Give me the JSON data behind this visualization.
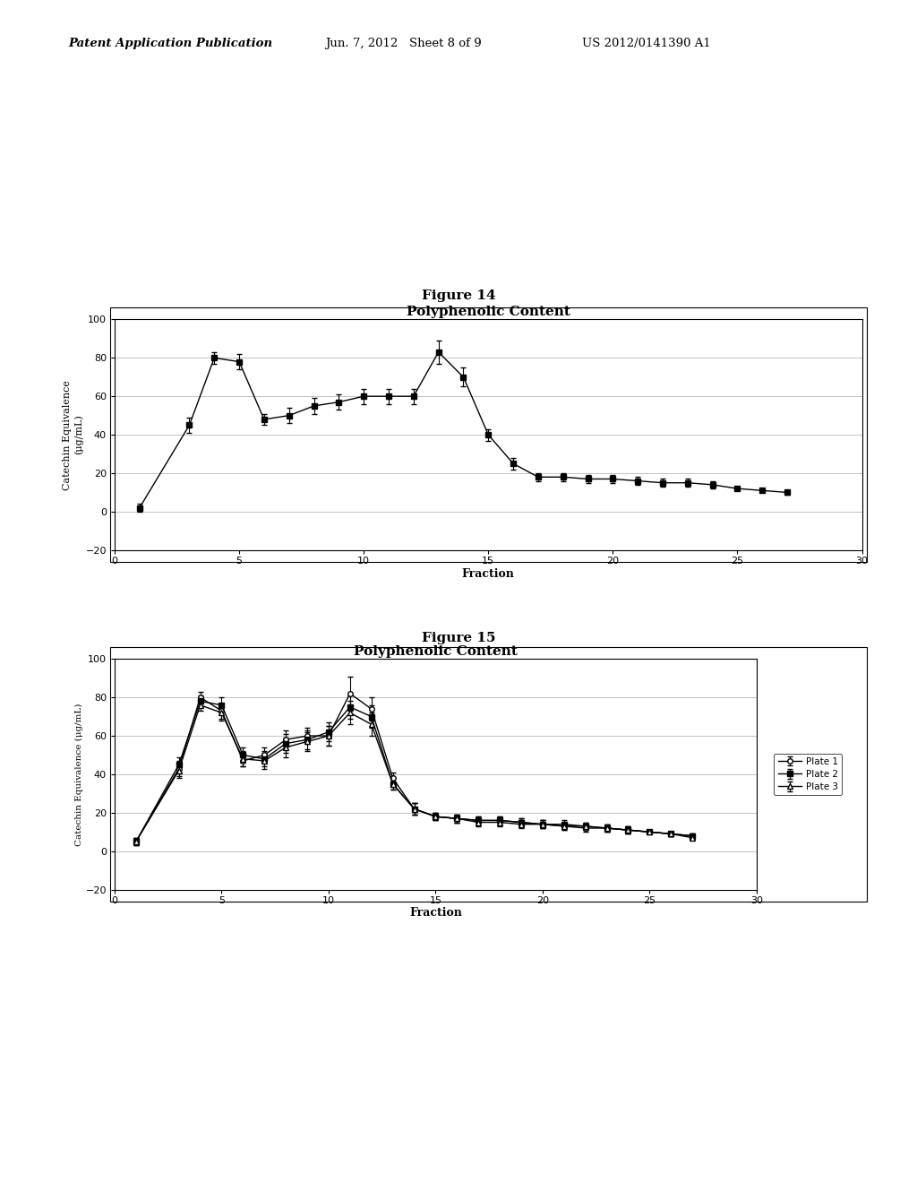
{
  "fig14_title": "Polyphenolic Content",
  "fig15_title": "Polyphenolic Content",
  "xlabel": "Fraction",
  "ylabel14": "Catechin Equivalence\n(μg/mL)",
  "ylabel15": "Catechin Equivalence (μg/mL)",
  "xlim": [
    0,
    30
  ],
  "ylim": [
    -20,
    100
  ],
  "xticks": [
    0,
    5,
    10,
    15,
    20,
    25,
    30
  ],
  "yticks": [
    -20,
    0,
    20,
    40,
    60,
    80,
    100
  ],
  "fig14_x": [
    1,
    3,
    4,
    5,
    6,
    7,
    8,
    9,
    10,
    11,
    12,
    13,
    14,
    15,
    16,
    17,
    18,
    19,
    20,
    21,
    22,
    23,
    24,
    25,
    26,
    27
  ],
  "fig14_y": [
    2,
    45,
    80,
    78,
    48,
    50,
    55,
    57,
    60,
    60,
    60,
    83,
    70,
    40,
    25,
    18,
    18,
    17,
    17,
    16,
    15,
    15,
    14,
    12,
    11,
    10
  ],
  "fig14_yerr": [
    2,
    4,
    3,
    4,
    3,
    4,
    4,
    4,
    4,
    4,
    4,
    6,
    5,
    3,
    3,
    2,
    2,
    2,
    2,
    2,
    2,
    2,
    2,
    1,
    1,
    1
  ],
  "fig15_plate1_x": [
    1,
    3,
    4,
    5,
    6,
    7,
    8,
    9,
    10,
    11,
    12,
    13,
    14,
    15,
    16,
    17,
    18,
    19,
    20,
    21,
    22,
    23,
    24,
    25,
    26,
    27
  ],
  "fig15_plate1_y": [
    5,
    43,
    80,
    73,
    47,
    50,
    58,
    60,
    60,
    82,
    74,
    38,
    22,
    18,
    17,
    16,
    16,
    15,
    14,
    13,
    12,
    12,
    11,
    10,
    9,
    8
  ],
  "fig15_plate1_yerr": [
    2,
    4,
    3,
    4,
    3,
    4,
    5,
    4,
    5,
    9,
    6,
    3,
    3,
    2,
    2,
    2,
    2,
    2,
    2,
    2,
    2,
    2,
    2,
    1,
    1,
    1
  ],
  "fig15_plate2_x": [
    1,
    3,
    4,
    5,
    6,
    7,
    8,
    9,
    10,
    11,
    12,
    13,
    14,
    15,
    16,
    17,
    18,
    19,
    20,
    21,
    22,
    23,
    24,
    25,
    26,
    27
  ],
  "fig15_plate2_y": [
    5,
    45,
    78,
    76,
    50,
    48,
    56,
    58,
    62,
    75,
    70,
    35,
    22,
    18,
    17,
    16,
    16,
    15,
    14,
    14,
    13,
    12,
    11,
    10,
    9,
    8
  ],
  "fig15_plate2_yerr": [
    2,
    4,
    3,
    4,
    4,
    4,
    5,
    5,
    5,
    6,
    6,
    3,
    3,
    2,
    2,
    2,
    2,
    2,
    2,
    2,
    2,
    2,
    2,
    1,
    1,
    1
  ],
  "fig15_plate3_x": [
    1,
    3,
    4,
    5,
    6,
    7,
    8,
    9,
    10,
    11,
    12,
    13,
    14,
    15,
    16,
    17,
    18,
    19,
    20,
    21,
    22,
    23,
    24,
    25,
    26,
    27
  ],
  "fig15_plate3_y": [
    5,
    42,
    76,
    72,
    48,
    47,
    54,
    57,
    60,
    72,
    66,
    35,
    22,
    18,
    17,
    15,
    15,
    14,
    14,
    13,
    13,
    12,
    11,
    10,
    9,
    7
  ],
  "fig15_plate3_yerr": [
    2,
    4,
    3,
    4,
    4,
    4,
    5,
    5,
    5,
    6,
    6,
    3,
    3,
    2,
    2,
    2,
    2,
    2,
    2,
    2,
    2,
    2,
    2,
    1,
    1,
    1
  ],
  "header_left": "Patent Application Publication",
  "header_center": "Jun. 7, 2012   Sheet 8 of 9",
  "header_right": "US 2012/0141390 A1",
  "fig14_label": "Figure 14",
  "fig15_label": "Figure 15",
  "bg_color": "#ffffff",
  "legend_labels": [
    "Plate 1",
    "Plate 2",
    "Plate 3"
  ]
}
